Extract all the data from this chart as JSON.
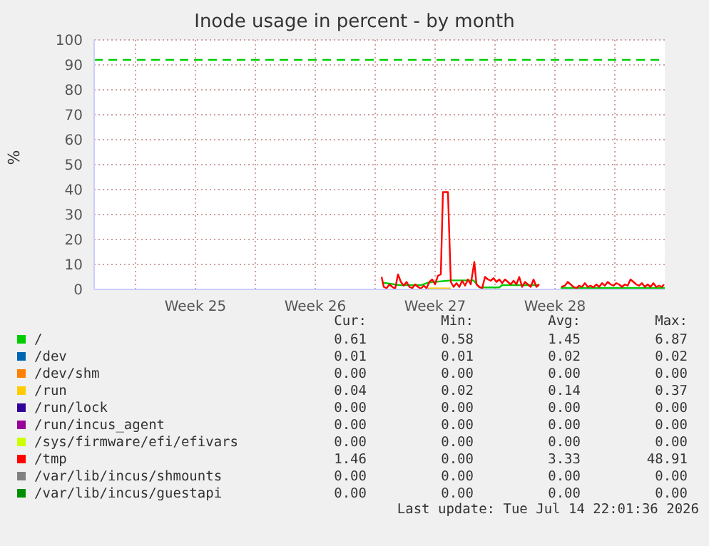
{
  "chart_data": {
    "type": "line",
    "title": "Inode usage in percent - by month",
    "ylabel": "%",
    "xlim": [
      "2026-06-12T14:00",
      "2026-07-15T22:00"
    ],
    "xticks": [
      {
        "value": "2026-06-15T00:00",
        "label": null
      },
      {
        "value": "2026-06-18T12:00",
        "label": "Week 25"
      },
      {
        "value": "2026-06-22T00:00",
        "label": null
      },
      {
        "value": "2026-06-25T12:00",
        "label": "Week 26"
      },
      {
        "value": "2026-06-29T00:00",
        "label": null
      },
      {
        "value": "2026-07-02T12:00",
        "label": "Week 27"
      },
      {
        "value": "2026-07-06T00:00",
        "label": null
      },
      {
        "value": "2026-07-09T12:00",
        "label": "Week 28"
      },
      {
        "value": "2026-07-13T00:00",
        "label": null
      }
    ],
    "ylim": [
      0,
      100
    ],
    "yticks": [
      0,
      10,
      20,
      30,
      40,
      50,
      60,
      70,
      80,
      90,
      100
    ],
    "grid": true,
    "legend": "bottom",
    "marker": "none",
    "ref_lines": [
      {
        "axis": "y",
        "value": 92,
        "color": "#00cc00",
        "line_style": "dashed"
      }
    ],
    "series": [
      {
        "name": "/",
        "color": "#00cc00",
        "x": [
          "2026-06-29T10:00",
          "2026-06-30T10:00",
          "2026-07-01T16:00",
          "2026-07-02T02:00",
          "2026-07-03T10:00",
          "2026-07-04T18:00",
          "2026-07-05T02:00",
          "2026-07-06T06:00",
          "2026-07-06T10:00",
          "2026-07-08T14:00",
          "2026-07-09T06:00",
          "2026-07-09T20:00",
          "2026-07-15T22:00"
        ],
        "values": [
          2.7,
          1.7,
          1.7,
          2.7,
          3.6,
          3.6,
          0.8,
          0.8,
          1.7,
          1.7,
          null,
          0.6,
          0.6
        ]
      },
      {
        "name": "/dev",
        "color": "#0066b3"
      },
      {
        "name": "/dev/shm",
        "color": "#ff8000"
      },
      {
        "name": "/run",
        "color": "#ffcc00",
        "x": [
          "2026-07-02T02:00",
          "2026-07-03T10:00"
        ],
        "values": [
          0.4,
          0.4
        ]
      },
      {
        "name": "/run/lock",
        "color": "#330099"
      },
      {
        "name": "/run/incus_agent",
        "color": "#990099"
      },
      {
        "name": "/sys/firmware/efi/efivars",
        "color": "#ccff00"
      },
      {
        "name": "/tmp",
        "color": "#ff0000",
        "x": [
          "2026-06-29T09:00",
          "2026-06-29T12:00",
          "2026-06-29T16:00",
          "2026-06-29T20:00",
          "2026-06-30T00:00",
          "2026-06-30T04:00",
          "2026-06-30T08:00",
          "2026-06-30T12:00",
          "2026-06-30T16:00",
          "2026-06-30T20:00",
          "2026-07-01T00:00",
          "2026-07-01T04:00",
          "2026-07-01T08:00",
          "2026-07-01T12:00",
          "2026-07-01T16:00",
          "2026-07-01T20:00",
          "2026-07-02T00:00",
          "2026-07-02T04:00",
          "2026-07-02T08:00",
          "2026-07-02T12:00",
          "2026-07-02T16:00",
          "2026-07-02T20:00",
          "2026-07-02T23:00",
          "2026-07-03T06:00",
          "2026-07-03T10:00",
          "2026-07-03T14:00",
          "2026-07-03T18:00",
          "2026-07-03T22:00",
          "2026-07-04T02:00",
          "2026-07-04T06:00",
          "2026-07-04T10:00",
          "2026-07-04T14:00",
          "2026-07-04T19:00",
          "2026-07-04T22:00",
          "2026-07-05T02:00",
          "2026-07-05T06:00",
          "2026-07-05T10:00",
          "2026-07-05T14:00",
          "2026-07-05T18:00",
          "2026-07-05T22:00",
          "2026-07-06T02:00",
          "2026-07-06T06:00",
          "2026-07-06T10:00",
          "2026-07-06T14:00",
          "2026-07-06T18:00",
          "2026-07-06T22:00",
          "2026-07-07T02:00",
          "2026-07-07T06:00",
          "2026-07-07T10:00",
          "2026-07-07T14:00",
          "2026-07-07T18:00",
          "2026-07-07T22:00",
          "2026-07-08T02:00",
          "2026-07-08T06:00",
          "2026-07-08T10:00",
          "2026-07-08T14:00",
          "2026-07-09T06:00",
          "2026-07-09T21:00",
          "2026-07-10T02:00",
          "2026-07-10T06:00",
          "2026-07-10T10:00",
          "2026-07-10T14:00",
          "2026-07-10T18:00",
          "2026-07-10T22:00",
          "2026-07-11T02:00",
          "2026-07-11T06:00",
          "2026-07-11T10:00",
          "2026-07-11T14:00",
          "2026-07-11T18:00",
          "2026-07-11T22:00",
          "2026-07-12T02:00",
          "2026-07-12T06:00",
          "2026-07-12T10:00",
          "2026-07-12T14:00",
          "2026-07-12T18:00",
          "2026-07-12T22:00",
          "2026-07-13T02:00",
          "2026-07-13T06:00",
          "2026-07-13T10:00",
          "2026-07-13T14:00",
          "2026-07-13T18:00",
          "2026-07-13T22:00",
          "2026-07-14T02:00",
          "2026-07-14T06:00",
          "2026-07-14T10:00",
          "2026-07-14T14:00",
          "2026-07-14T18:00",
          "2026-07-14T22:00",
          "2026-07-15T02:00",
          "2026-07-15T06:00",
          "2026-07-15T10:00",
          "2026-07-15T14:00",
          "2026-07-15T18:00",
          "2026-07-15T21:00"
        ],
        "values": [
          5,
          1,
          0.5,
          2,
          1,
          0.3,
          6,
          3,
          1.5,
          3,
          1,
          0.5,
          2,
          1,
          0.3,
          1.5,
          0.5,
          3,
          4,
          2,
          5.5,
          6,
          39,
          39,
          3,
          1,
          2.5,
          1,
          3.5,
          1.5,
          4,
          2,
          11,
          2,
          1,
          0.5,
          5,
          4,
          3.5,
          4.5,
          3,
          4,
          2.5,
          4,
          3,
          2,
          3.5,
          2,
          5,
          1,
          3,
          2,
          1,
          4,
          1,
          2,
          null,
          1,
          1.5,
          3,
          2,
          1,
          0.5,
          1.5,
          1,
          2.5,
          1,
          1.5,
          0.8,
          2,
          1,
          2.5,
          1.5,
          3,
          2,
          1.5,
          2.5,
          2,
          1,
          2,
          1.5,
          4,
          3,
          2,
          1.5,
          2.5,
          1,
          2,
          1,
          2.5,
          1,
          1.5,
          1,
          2
        ]
      },
      {
        "name": "/var/lib/incus/shmounts",
        "color": "#808080"
      },
      {
        "name": "/var/lib/incus/guestapi",
        "color": "#008f00"
      }
    ],
    "annotations": [
      "Cur:",
      "Min:",
      "Avg:",
      "Max:",
      "0.61",
      "0.58",
      "1.45",
      "6.87",
      "0.01",
      "0.01",
      "0.02",
      "0.02",
      "0.00",
      "0.00",
      "0.00",
      "0.00",
      "0.04",
      "0.02",
      "0.14",
      "0.37",
      "0.00",
      "0.00",
      "0.00",
      "0.00",
      "0.00",
      "0.00",
      "0.00",
      "0.00",
      "0.00",
      "0.00",
      "0.00",
      "0.00",
      "1.46",
      "0.00",
      "3.33",
      "48.91",
      "0.00",
      "0.00",
      "0.00",
      "0.00",
      "0.00",
      "0.00",
      "0.00",
      "0.00",
      "Last update: Tue Jul 14 22:01:36 2026"
    ]
  }
}
